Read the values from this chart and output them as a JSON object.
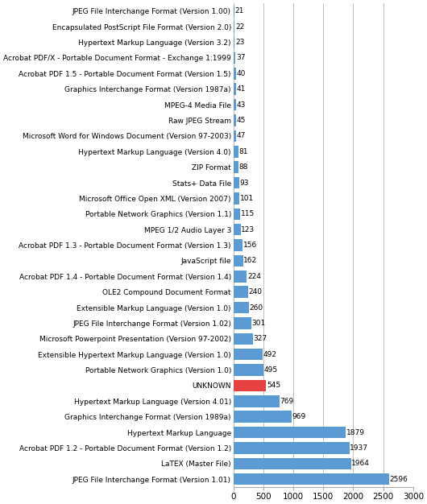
{
  "categories": [
    "JPEG File Interchange Format (Version 1.00)",
    "Encapsulated PostScript File Format (Version 2.0)",
    "Hypertext Markup Language (Version 3.2)",
    "Acrobat PDF/X - Portable Document Format - Exchange 1:1999",
    "Acrobat PDF 1.5 - Portable Document Format (Version 1.5)",
    "Graphics Interchange Format (Version 1987a)",
    "MPEG-4 Media File",
    "Raw JPEG Stream",
    "Microsoft Word for Windows Document (Version 97-2003)",
    "Hypertext Markup Language (Version 4.0)",
    "ZIP Format",
    "Stats+ Data File",
    "Microsoft Office Open XML (Version 2007)",
    "Portable Network Graphics (Version 1.1)",
    "MPEG 1/2 Audio Layer 3",
    "Acrobat PDF 1.3 - Portable Document Format (Version 1.3)",
    "JavaScript file",
    "Acrobat PDF 1.4 - Portable Document Format (Version 1.4)",
    "OLE2 Compound Document Format",
    "Extensible Markup Language (Version 1.0)",
    "JPEG File Interchange Format (Version 1.02)",
    "Microsoft Powerpoint Presentation (Version 97-2002)",
    "Extensible Hypertext Markup Language (Version 1.0)",
    "Portable Network Graphics (Version 1.0)",
    "UNKNOWN",
    "Hypertext Markup Language (Version 4.01)",
    "Graphics Interchange Format (Version 1989a)",
    "Hypertext Markup Language",
    "Acrobat PDF 1.2 - Portable Document Format (Version 1.2)",
    "LaTEX (Master File)",
    "JPEG File Interchange Format (Version 1.01)"
  ],
  "values": [
    21,
    22,
    23,
    37,
    40,
    41,
    43,
    45,
    47,
    81,
    88,
    93,
    101,
    115,
    123,
    156,
    162,
    224,
    240,
    260,
    301,
    327,
    492,
    495,
    545,
    769,
    969,
    1879,
    1937,
    1964,
    2596
  ],
  "bar_colors": [
    "#5B9BD5",
    "#5B9BD5",
    "#5B9BD5",
    "#5B9BD5",
    "#5B9BD5",
    "#5B9BD5",
    "#5B9BD5",
    "#5B9BD5",
    "#5B9BD5",
    "#5B9BD5",
    "#5B9BD5",
    "#5B9BD5",
    "#5B9BD5",
    "#5B9BD5",
    "#5B9BD5",
    "#5B9BD5",
    "#5B9BD5",
    "#5B9BD5",
    "#5B9BD5",
    "#5B9BD5",
    "#5B9BD5",
    "#5B9BD5",
    "#5B9BD5",
    "#5B9BD5",
    "#E74040",
    "#5B9BD5",
    "#5B9BD5",
    "#5B9BD5",
    "#5B9BD5",
    "#5B9BD5",
    "#5B9BD5"
  ],
  "xlim": [
    0,
    3000
  ],
  "xticks": [
    0,
    500,
    1000,
    1500,
    2000,
    2500,
    3000
  ],
  "background_color": "#FFFFFF",
  "grid_color": "#C0C0C0",
  "bar_height": 0.75,
  "label_fontsize": 6.5,
  "value_fontsize": 6.5,
  "tick_fontsize": 7.5
}
